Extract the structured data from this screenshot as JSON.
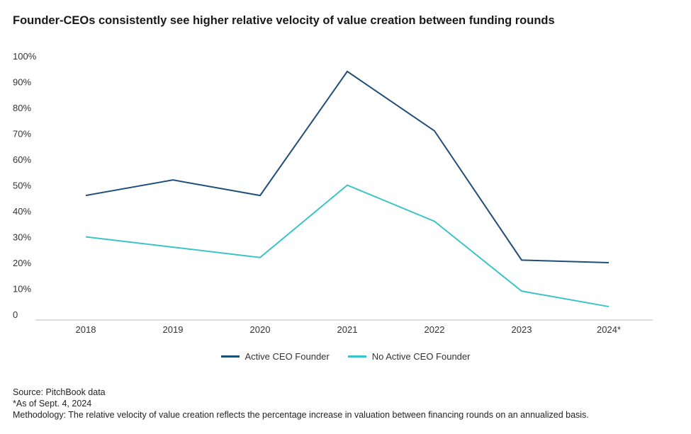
{
  "chart_data": {
    "type": "line",
    "title": "Founder-CEOs consistently see higher relative velocity of value creation between funding rounds",
    "categories": [
      "2018",
      "2019",
      "2020",
      "2021",
      "2022",
      "2023",
      "2024*"
    ],
    "y_ticks": [
      "0",
      "10%",
      "20%",
      "30%",
      "40%",
      "50%",
      "60%",
      "70%",
      "80%",
      "90%",
      "100%"
    ],
    "ylim": [
      0,
      100
    ],
    "series": [
      {
        "name": "Active CEO Founder",
        "color": "#1f4e79",
        "values": [
          46,
          52,
          46,
          94,
          71,
          21,
          20
        ]
      },
      {
        "name": "No Active CEO Founder",
        "color": "#3cc3c6",
        "values": [
          30,
          26,
          22,
          50,
          36,
          9,
          3
        ]
      }
    ],
    "legend_position": "bottom"
  },
  "notes": [
    "Source: PitchBook data",
    "*As of Sept. 4, 2024",
    "Methodology: The relative velocity of value creation reflects the percentage increase in valuation between financing rounds on an annualized basis."
  ]
}
